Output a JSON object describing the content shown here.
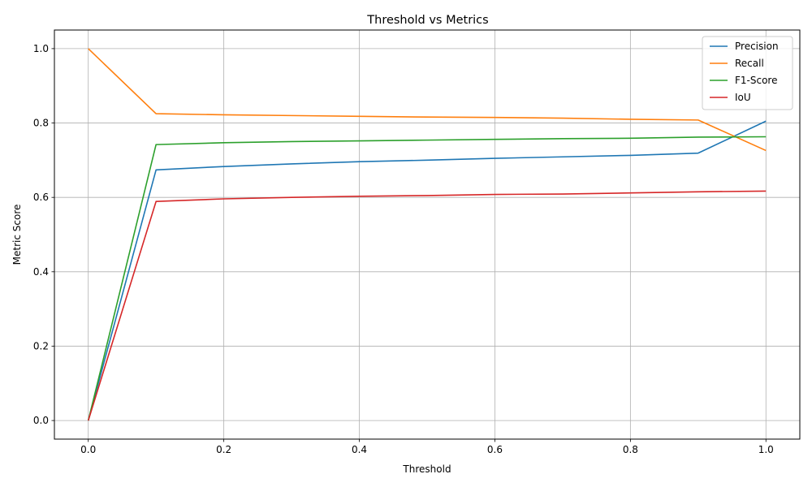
{
  "chart_data": {
    "type": "line",
    "title": "Threshold vs Metrics",
    "xlabel": "Threshold",
    "ylabel": "Metric Score",
    "xlim": [
      -0.05,
      1.05
    ],
    "ylim": [
      -0.05,
      1.05
    ],
    "x_ticks": [
      0.0,
      0.2,
      0.4,
      0.6,
      0.8,
      1.0
    ],
    "x_tick_labels": [
      "0.0",
      "0.2",
      "0.4",
      "0.6",
      "0.8",
      "1.0"
    ],
    "y_ticks": [
      0.0,
      0.2,
      0.4,
      0.6,
      0.8,
      1.0
    ],
    "y_tick_labels": [
      "0.0",
      "0.2",
      "0.4",
      "0.6",
      "0.8",
      "1.0"
    ],
    "grid": true,
    "legend_position": "top-right",
    "x": [
      0.0,
      0.1,
      0.2,
      0.3,
      0.4,
      0.5,
      0.6,
      0.7,
      0.8,
      0.9,
      1.0
    ],
    "series": [
      {
        "name": "Precision",
        "color": "#1f77b4",
        "values": [
          0.0,
          0.674,
          0.683,
          0.69,
          0.696,
          0.7,
          0.705,
          0.709,
          0.713,
          0.719,
          0.805
        ]
      },
      {
        "name": "Recall",
        "color": "#ff7f0e",
        "values": [
          1.0,
          0.825,
          0.822,
          0.82,
          0.818,
          0.816,
          0.815,
          0.813,
          0.81,
          0.808,
          0.726
        ]
      },
      {
        "name": "F1-Score",
        "color": "#2ca02c",
        "values": [
          0.0,
          0.742,
          0.747,
          0.75,
          0.752,
          0.754,
          0.756,
          0.758,
          0.759,
          0.762,
          0.763
        ]
      },
      {
        "name": "IoU",
        "color": "#d62728",
        "values": [
          0.0,
          0.589,
          0.596,
          0.6,
          0.603,
          0.605,
          0.608,
          0.609,
          0.612,
          0.615,
          0.617
        ]
      }
    ]
  }
}
